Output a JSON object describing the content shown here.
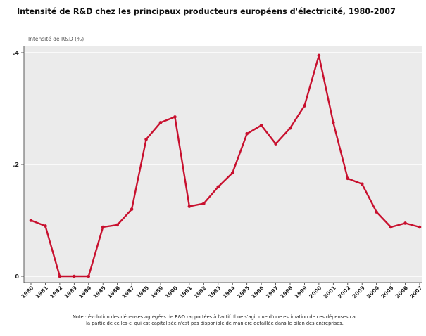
{
  "chart_data": {
    "type": "line",
    "title": "Intensité de R&D chez les principaux producteurs européens d'électricité, 1980-2007",
    "ylabel": "Intensité de R&D (%)",
    "xlabel": "",
    "x": [
      "1980",
      "1981",
      "1982",
      "1983",
      "1984",
      "1985",
      "1986",
      "1987",
      "1988",
      "1989",
      "1990",
      "1991",
      "1992",
      "1993",
      "1994",
      "1995",
      "1996",
      "1997",
      "1998",
      "1999",
      "2000",
      "2001",
      "2002",
      "2003",
      "2004",
      "2005",
      "2006",
      "2007"
    ],
    "series": [
      {
        "values": [
          0.1,
          0.09,
          0.0,
          0.0,
          0.0,
          0.088,
          0.092,
          0.12,
          0.245,
          0.275,
          0.285,
          0.125,
          0.13,
          0.16,
          0.185,
          0.255,
          0.27,
          0.237,
          0.265,
          0.305,
          0.395,
          0.275,
          0.175,
          0.165,
          0.115,
          0.088,
          0.095,
          0.088
        ]
      }
    ],
    "yticks": [
      0,
      0.2,
      0.4
    ],
    "ytick_labels": [
      "0",
      ".2",
      ".4"
    ],
    "ylim": [
      0,
      0.4
    ],
    "grid": true,
    "line_color": "#c8102e",
    "plot_background": "#ebebeb"
  },
  "note": {
    "line1": "Note : évolution des dépenses agrégées de R&D rapportées à l'actif. Il ne s'agit que d'une estimation de ces dépenses car",
    "line2": "la partie de celles-ci qui est capitalisée n'est pas disponible de manière détaillée dans le bilan des entreprises."
  }
}
